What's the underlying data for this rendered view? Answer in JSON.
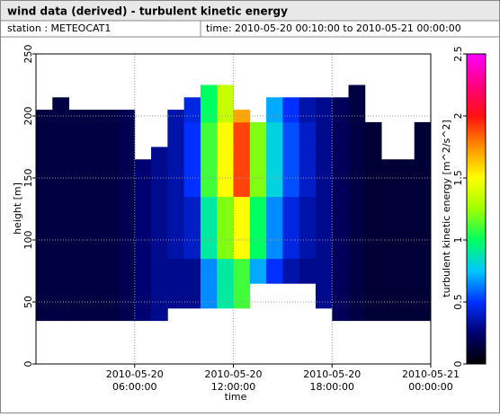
{
  "chart_data": {
    "type": "heatmap",
    "title": "wind data (derived) - turbulent kinetic energy",
    "station": "station : METEOCAT1",
    "time_range": "time: 2010-05-20 00:10:00 to 2010-05-21 00:00:00",
    "x_label": "time",
    "y_label": "height [m]",
    "colorbar_label": "turbulent kinetic energy [m^2/s^2]",
    "x": [
      "2010-05-20 00:30:00",
      "2010-05-20 01:30:00",
      "2010-05-20 02:30:00",
      "2010-05-20 03:30:00",
      "2010-05-20 04:30:00",
      "2010-05-20 05:30:00",
      "2010-05-20 06:30:00",
      "2010-05-20 07:30:00",
      "2010-05-20 08:30:00",
      "2010-05-20 09:30:00",
      "2010-05-20 10:30:00",
      "2010-05-20 11:30:00",
      "2010-05-20 12:30:00",
      "2010-05-20 13:30:00",
      "2010-05-20 14:30:00",
      "2010-05-20 15:30:00",
      "2010-05-20 16:30:00",
      "2010-05-20 17:30:00",
      "2010-05-20 18:30:00",
      "2010-05-20 19:30:00",
      "2010-05-20 20:30:00",
      "2010-05-20 21:30:00",
      "2010-05-20 22:30:00",
      "2010-05-20 23:30:00"
    ],
    "y": [
      40,
      50,
      60,
      70,
      80,
      90,
      100,
      110,
      120,
      130,
      140,
      150,
      160,
      170,
      180,
      190,
      200,
      210,
      220
    ],
    "z": [
      [
        0.15,
        0.15,
        0.15,
        0.15,
        0.15,
        0.18,
        0.25,
        0.3,
        null,
        null,
        null,
        null,
        null,
        null,
        null,
        null,
        null,
        null,
        0.2,
        0.15,
        0.12,
        0.12,
        0.12,
        0.12
      ],
      [
        0.15,
        0.15,
        0.15,
        0.15,
        0.15,
        0.18,
        0.25,
        0.3,
        0.3,
        0.3,
        0.65,
        0.9,
        1.1,
        null,
        null,
        null,
        null,
        0.3,
        0.2,
        0.15,
        0.12,
        0.12,
        0.12,
        0.12
      ],
      [
        0.15,
        0.15,
        0.15,
        0.15,
        0.15,
        0.18,
        0.25,
        0.3,
        0.3,
        0.3,
        0.65,
        0.9,
        1.1,
        null,
        null,
        null,
        null,
        0.3,
        0.2,
        0.15,
        0.12,
        0.12,
        0.12,
        0.12
      ],
      [
        0.15,
        0.15,
        0.15,
        0.15,
        0.15,
        0.18,
        0.25,
        0.3,
        0.3,
        0.3,
        0.65,
        0.9,
        1.1,
        0.7,
        0.5,
        0.35,
        0.3,
        0.3,
        0.2,
        0.15,
        0.12,
        0.12,
        0.12,
        0.12
      ],
      [
        0.15,
        0.15,
        0.15,
        0.15,
        0.15,
        0.18,
        0.25,
        0.3,
        0.3,
        0.3,
        0.65,
        0.9,
        1.1,
        0.7,
        0.5,
        0.35,
        0.3,
        0.3,
        0.2,
        0.15,
        0.12,
        0.12,
        0.12,
        0.12
      ],
      [
        0.15,
        0.15,
        0.15,
        0.15,
        0.15,
        0.18,
        0.25,
        0.3,
        0.35,
        0.4,
        0.9,
        1.2,
        1.5,
        1,
        0.65,
        0.45,
        0.35,
        0.3,
        0.2,
        0.15,
        0.12,
        0.12,
        0.12,
        0.12
      ],
      [
        0.15,
        0.15,
        0.15,
        0.15,
        0.15,
        0.18,
        0.25,
        0.3,
        0.35,
        0.4,
        0.9,
        1.2,
        1.5,
        1,
        0.65,
        0.45,
        0.35,
        0.3,
        0.2,
        0.15,
        0.12,
        0.12,
        0.12,
        0.12
      ],
      [
        0.15,
        0.15,
        0.15,
        0.15,
        0.15,
        0.18,
        0.25,
        0.3,
        0.35,
        0.4,
        0.9,
        1.2,
        1.5,
        1,
        0.65,
        0.45,
        0.35,
        0.3,
        0.2,
        0.15,
        0.12,
        0.12,
        0.12,
        0.12
      ],
      [
        0.15,
        0.15,
        0.15,
        0.15,
        0.15,
        0.18,
        0.25,
        0.3,
        0.35,
        0.4,
        0.9,
        1.2,
        1.5,
        1,
        0.65,
        0.45,
        0.35,
        0.3,
        0.2,
        0.15,
        0.12,
        0.12,
        0.12,
        0.12
      ],
      [
        0.15,
        0.15,
        0.15,
        0.15,
        0.15,
        0.18,
        0.25,
        0.3,
        0.35,
        0.4,
        0.9,
        1.2,
        1.5,
        1,
        0.65,
        0.45,
        0.35,
        0.3,
        0.2,
        0.15,
        0.12,
        0.12,
        0.12,
        0.12
      ],
      [
        0.15,
        0.15,
        0.15,
        0.15,
        0.15,
        0.18,
        0.25,
        0.3,
        0.35,
        0.5,
        1.1,
        1.5,
        1.9,
        1.2,
        0.8,
        0.55,
        0.4,
        0.3,
        0.2,
        0.15,
        0.12,
        0.12,
        0.12,
        0.12
      ],
      [
        0.15,
        0.15,
        0.15,
        0.15,
        0.15,
        0.18,
        0.25,
        0.3,
        0.35,
        0.5,
        1.1,
        1.5,
        1.9,
        1.2,
        0.8,
        0.55,
        0.4,
        0.3,
        0.2,
        0.15,
        0.12,
        0.12,
        0.12,
        0.12
      ],
      [
        0.15,
        0.15,
        0.15,
        0.15,
        0.15,
        0.18,
        0.25,
        0.3,
        0.35,
        0.5,
        1.1,
        1.5,
        1.9,
        1.2,
        0.8,
        0.55,
        0.4,
        0.3,
        0.2,
        0.15,
        0.12,
        0.12,
        0.12,
        0.12
      ],
      [
        0.15,
        0.15,
        0.15,
        0.15,
        0.15,
        0.18,
        null,
        0.3,
        0.35,
        0.5,
        1.1,
        1.5,
        1.9,
        1.2,
        0.8,
        0.55,
        0.4,
        0.3,
        0.2,
        0.15,
        0.12,
        null,
        null,
        0.12
      ],
      [
        0.15,
        0.15,
        0.15,
        0.15,
        0.15,
        0.18,
        null,
        null,
        0.35,
        0.5,
        1.1,
        1.5,
        1.9,
        1.2,
        0.8,
        0.55,
        0.4,
        0.3,
        0.2,
        0.15,
        0.12,
        null,
        null,
        0.12
      ],
      [
        0.15,
        0.15,
        0.15,
        0.15,
        0.15,
        0.18,
        null,
        null,
        0.35,
        0.5,
        1.1,
        1.5,
        1.9,
        1.2,
        0.8,
        0.55,
        0.4,
        0.3,
        0.2,
        0.15,
        0.12,
        null,
        null,
        0.12
      ],
      [
        0.15,
        0.15,
        0.15,
        0.15,
        0.15,
        0.18,
        null,
        null,
        0.35,
        0.45,
        1,
        1.35,
        1.7,
        null,
        0.7,
        0.5,
        0.35,
        0.3,
        0.2,
        0.15,
        null,
        null,
        null,
        null
      ],
      [
        null,
        0.15,
        null,
        null,
        null,
        null,
        null,
        null,
        null,
        0.45,
        1,
        1.35,
        null,
        null,
        0.7,
        0.5,
        0.35,
        0.3,
        0.2,
        0.15,
        null,
        null,
        null,
        null
      ],
      [
        null,
        null,
        null,
        null,
        null,
        null,
        null,
        null,
        null,
        null,
        1,
        1.35,
        null,
        null,
        null,
        null,
        null,
        null,
        null,
        0.15,
        null,
        null,
        null,
        null
      ]
    ],
    "xlim": [
      "2010-05-20 00:00:00",
      "2010-05-21 00:00:00"
    ],
    "xticks": [
      "2010-05-20 06:00:00",
      "2010-05-20 12:00:00",
      "2010-05-20 18:00:00",
      "2010-05-21 00:00:00"
    ],
    "ylim": [
      0,
      250
    ],
    "yticks": [
      0,
      50,
      100,
      150,
      200,
      250
    ],
    "zlim": [
      0,
      2.5
    ],
    "zticks": [
      0,
      0.5,
      1,
      1.5,
      2,
      2.5
    ],
    "colormap": [
      "#000000",
      "#000070",
      "#0030ff",
      "#00c8ff",
      "#00ff60",
      "#a0ff00",
      "#ffff00",
      "#ff9000",
      "#ff1010",
      "#ff0080",
      "#ff00ff"
    ],
    "grid": true
  }
}
